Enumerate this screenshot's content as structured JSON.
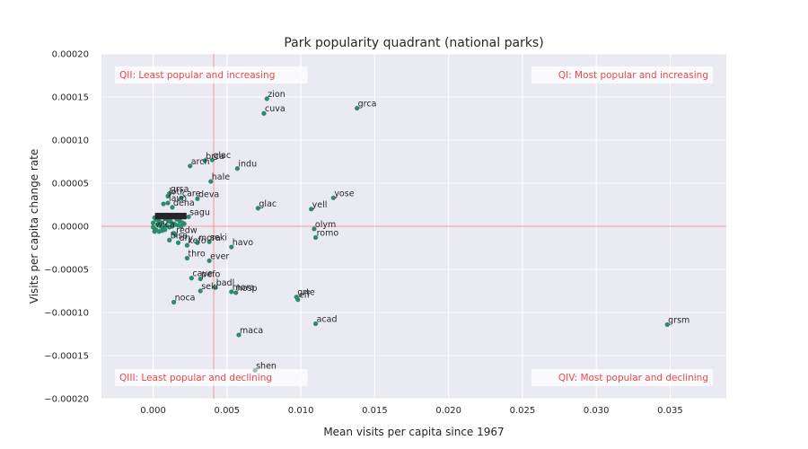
{
  "chart_data": {
    "type": "scatter",
    "title": "Park popularity quadrant (national parks)",
    "xlabel": "Mean visits per capita since 1967",
    "ylabel": "Visits per capita change rate",
    "xlim": [
      -0.0035,
      0.0388
    ],
    "ylim": [
      -0.0002,
      0.0002
    ],
    "x_ticks": [
      0.0,
      0.005,
      0.01,
      0.015,
      0.02,
      0.025,
      0.03,
      0.035
    ],
    "x_tick_labels": [
      "0.000",
      "0.005",
      "0.010",
      "0.015",
      "0.020",
      "0.025",
      "0.030",
      "0.035"
    ],
    "y_ticks": [
      -0.0002,
      -0.00015,
      -0.0001,
      -5e-05,
      0.0,
      5e-05,
      0.0001,
      0.00015,
      0.0002
    ],
    "y_tick_labels": [
      "−0.00020",
      "−0.00015",
      "−0.00010",
      "−0.00005",
      "0.00000",
      "0.00005",
      "0.00010",
      "0.00015",
      "0.00020"
    ],
    "grid": true,
    "mean_x": 0.0041,
    "mean_y": 0.0,
    "point_color": "#2a8c6c",
    "faded_point_color": "#8fc7b2",
    "guide_color": "#ff8080",
    "quadrant_labels": {
      "top_left": "QII: Least popular and increasing",
      "top_right": "QI: Most popular and increasing",
      "bottom_left": "QIII: Least popular and declining",
      "bottom_right": "QIV: Most popular and declining"
    },
    "labeled_points": [
      {
        "label": "zion",
        "x": 0.0077,
        "y": 0.000148
      },
      {
        "label": "grca",
        "x": 0.0138,
        "y": 0.000137
      },
      {
        "label": "cuva",
        "x": 0.0075,
        "y": 0.000131
      },
      {
        "label": "brca",
        "x": 0.0035,
        "y": 7.6e-05
      },
      {
        "label": "glac",
        "x": 0.004,
        "y": 7.7e-05
      },
      {
        "label": "arch",
        "x": 0.0025,
        "y": 7e-05
      },
      {
        "label": "indu",
        "x": 0.0057,
        "y": 6.7e-05
      },
      {
        "label": "hale",
        "x": 0.0039,
        "y": 5.2e-05
      },
      {
        "label": "grsa",
        "x": 0.0011,
        "y": 3.8e-05
      },
      {
        "label": "jotr",
        "x": 0.001,
        "y": 3.5e-05
      },
      {
        "label": "care",
        "x": 0.0019,
        "y": 3.3e-05
      },
      {
        "label": "deva",
        "x": 0.003,
        "y": 3.2e-05
      },
      {
        "label": "yose",
        "x": 0.0122,
        "y": 3.3e-05
      },
      {
        "label": "lavo",
        "x": 0.001,
        "y": 2.7e-05
      },
      {
        "label": "dena",
        "x": 0.0013,
        "y": 2.2e-05
      },
      {
        "label": "glac",
        "x": 0.0071,
        "y": 2.1e-05
      },
      {
        "label": "yell",
        "x": 0.0107,
        "y": 2e-05
      },
      {
        "label": "sagu",
        "x": 0.0024,
        "y": 1.1e-05
      },
      {
        "label": "olym",
        "x": 0.0109,
        "y": -3e-06
      },
      {
        "label": "romo",
        "x": 0.011,
        "y": -1.3e-05
      },
      {
        "label": "wica",
        "x": 0.0001,
        "y": -3e-06
      },
      {
        "label": "redw",
        "x": 0.0015,
        "y": -1e-05
      },
      {
        "label": "bisa",
        "x": 0.0011,
        "y": -1.6e-05
      },
      {
        "label": "dry",
        "x": 0.0017,
        "y": -1.9e-05
      },
      {
        "label": "kefo",
        "x": 0.0023,
        "y": -2.2e-05
      },
      {
        "label": "mora",
        "x": 0.003,
        "y": -1.9e-05
      },
      {
        "label": "seki",
        "x": 0.0038,
        "y": -1.8e-05
      },
      {
        "label": "havo",
        "x": 0.0053,
        "y": -2.4e-05
      },
      {
        "label": "thro",
        "x": 0.0023,
        "y": -3.7e-05
      },
      {
        "label": "ever",
        "x": 0.0038,
        "y": -4e-05
      },
      {
        "label": "cave",
        "x": 0.0026,
        "y": -6e-05
      },
      {
        "label": "pefo",
        "x": 0.0032,
        "y": -6.1e-05
      },
      {
        "label": "badl",
        "x": 0.0042,
        "y": -7.1e-05
      },
      {
        "label": "seki",
        "x": 0.0032,
        "y": -7.5e-05
      },
      {
        "label": "mora",
        "x": 0.0053,
        "y": -7.6e-05
      },
      {
        "label": "hosp",
        "x": 0.0056,
        "y": -7.7e-05
      },
      {
        "label": "grte",
        "x": 0.0097,
        "y": -8.2e-05
      },
      {
        "label": "eff",
        "x": 0.0098,
        "y": -8.5e-05
      },
      {
        "label": "noca",
        "x": 0.0014,
        "y": -8.8e-05
      },
      {
        "label": "acad",
        "x": 0.011,
        "y": -0.000113
      },
      {
        "label": "grsm",
        "x": 0.0348,
        "y": -0.000114
      },
      {
        "label": "maca",
        "x": 0.0058,
        "y": -0.000126
      },
      {
        "label": "shen",
        "x": 0.0069,
        "y": -0.000167
      }
    ],
    "cluster_label": "■■■■■",
    "unlabeled_points": [
      {
        "x": 0.0001,
        "y": 1e-05
      },
      {
        "x": 0.0002,
        "y": 8e-06
      },
      {
        "x": 0.0004,
        "y": 6e-06
      },
      {
        "x": 0.0006,
        "y": 4e-06
      },
      {
        "x": 0.0008,
        "y": 9e-06
      },
      {
        "x": 0.001,
        "y": 7e-06
      },
      {
        "x": 0.0012,
        "y": 5e-06
      },
      {
        "x": 0.0014,
        "y": 3e-06
      },
      {
        "x": 0.0016,
        "y": 8e-06
      },
      {
        "x": 0.0018,
        "y": 6e-06
      },
      {
        "x": 0.002,
        "y": 4e-06
      },
      {
        "x": 0.0003,
        "y": 2e-06
      },
      {
        "x": 0.0005,
        "y": 0.0
      },
      {
        "x": 0.0007,
        "y": -2e-06
      },
      {
        "x": 0.0009,
        "y": 1e-06
      },
      {
        "x": 0.0011,
        "y": -1e-06
      },
      {
        "x": 0.0013,
        "y": 0.0
      },
      {
        "x": 0.0015,
        "y": 2e-06
      },
      {
        "x": 0.0017,
        "y": 1e-06
      },
      {
        "x": 0.0019,
        "y": 0.0
      },
      {
        "x": 0.0021,
        "y": 3e-06
      },
      {
        "x": 0.0002,
        "y": -4e-06
      },
      {
        "x": 0.0004,
        "y": -6e-06
      },
      {
        "x": 0.0006,
        "y": -5e-06
      },
      {
        "x": 0.0008,
        "y": -4e-06
      },
      {
        "x": 0.0003,
        "y": 1.2e-05
      },
      {
        "x": 0.0006,
        "y": 1.1e-05
      },
      {
        "x": 0.0009,
        "y": 1.2e-05
      },
      {
        "x": 0.0012,
        "y": 1e-05
      },
      {
        "x": 0.0015,
        "y": 1.1e-05
      },
      {
        "x": 0.0018,
        "y": 9e-06
      },
      {
        "x": 0.0,
        "y": 4e-06
      },
      {
        "x": 0.0,
        "y": -1e-06
      },
      {
        "x": 0.0001,
        "y": -6e-06
      },
      {
        "x": 0.0007,
        "y": 2.6e-05
      },
      {
        "x": 0.0014,
        "y": -8e-06
      }
    ]
  }
}
